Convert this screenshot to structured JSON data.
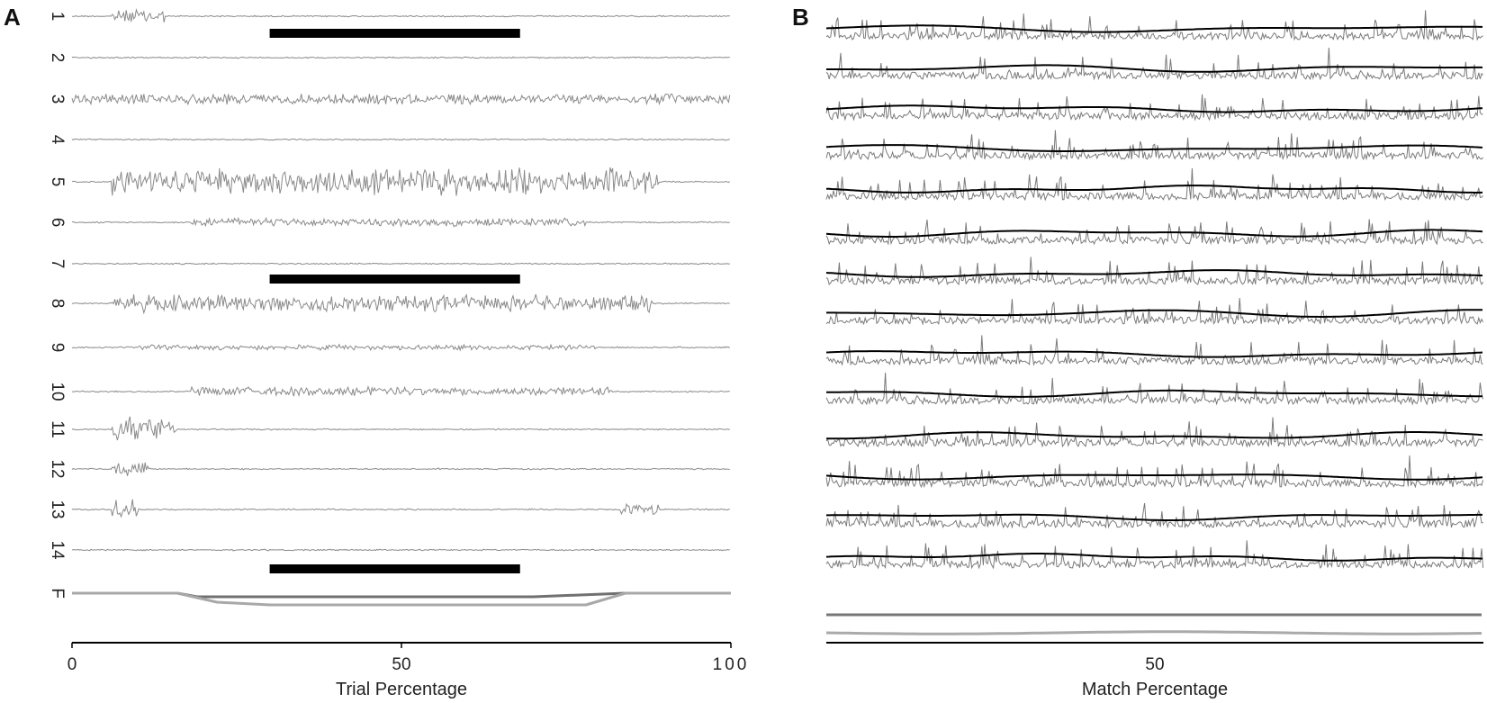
{
  "panels": {
    "A": {
      "letter": "A",
      "xlabel": "Trial Percentage",
      "x_ticks": [
        "0",
        "50",
        "100"
      ]
    },
    "B": {
      "letter": "B",
      "xlabel": "Match Percentage",
      "x_ticks": [
        "50"
      ]
    }
  },
  "chart_data": [
    {
      "panel": "A",
      "type": "line",
      "title": "",
      "xlabel": "Trial Percentage",
      "ylabel": "",
      "xlim": [
        0,
        100
      ],
      "x_ticks": [
        0,
        50,
        100
      ],
      "channel_labels": [
        "1",
        "2",
        "3",
        "4",
        "5",
        "6",
        "7",
        "8",
        "9",
        "10",
        "11",
        "12",
        "13",
        "14",
        "F"
      ],
      "trace_color": "#8a8a8a",
      "bar_color": "#000000",
      "activity_bursts": [
        {
          "channel": "1",
          "x_start": 6,
          "x_end": 14,
          "level": 0.5
        },
        {
          "channel": "3",
          "x_start": 0,
          "x_end": 100,
          "level": 0.35
        },
        {
          "channel": "5",
          "x_start": 6,
          "x_end": 89,
          "level": 1.0
        },
        {
          "channel": "6",
          "x_start": 18,
          "x_end": 78,
          "level": 0.25
        },
        {
          "channel": "8",
          "x_start": 6,
          "x_end": 88,
          "level": 0.6
        },
        {
          "channel": "9",
          "x_start": 10,
          "x_end": 80,
          "level": 0.15
        },
        {
          "channel": "10",
          "x_start": 18,
          "x_end": 82,
          "level": 0.3
        },
        {
          "channel": "11",
          "x_start": 6,
          "x_end": 16,
          "level": 0.9
        },
        {
          "channel": "12",
          "x_start": 6,
          "x_end": 12,
          "level": 0.55
        },
        {
          "channel": "13",
          "x_start": 6,
          "x_end": 10,
          "level": 0.7
        },
        {
          "channel": "13",
          "x_start": 83,
          "x_end": 89,
          "level": 0.45
        }
      ],
      "task_bars": [
        {
          "above_channel": "2",
          "x_start": 30,
          "x_end": 68
        },
        {
          "above_channel": "8",
          "x_start": 30,
          "x_end": 68
        },
        {
          "above_channel": "F",
          "x_start": 30,
          "x_end": 68
        }
      ],
      "force_traces": [
        {
          "color": "#707070",
          "points": [
            [
              0,
              0
            ],
            [
              16,
              0
            ],
            [
              19,
              -0.4
            ],
            [
              70,
              -0.4
            ],
            [
              84,
              0
            ],
            [
              100,
              0
            ]
          ]
        },
        {
          "color": "#a8a8a8",
          "points": [
            [
              0,
              0
            ],
            [
              16,
              0
            ],
            [
              22,
              -1.0
            ],
            [
              30,
              -1.3
            ],
            [
              78,
              -1.3
            ],
            [
              84,
              0
            ],
            [
              100,
              0
            ]
          ]
        }
      ]
    },
    {
      "panel": "B",
      "type": "line",
      "title": "",
      "xlabel": "Match Percentage",
      "ylabel": "",
      "x_ticks": [
        50
      ],
      "channel_count": 14,
      "raw_color": "#7a7a7a",
      "smooth_color": "#000000",
      "force_traces": [
        {
          "color": "#777777",
          "level": 0
        },
        {
          "color": "#aaaaaa",
          "level": -1
        }
      ]
    }
  ]
}
